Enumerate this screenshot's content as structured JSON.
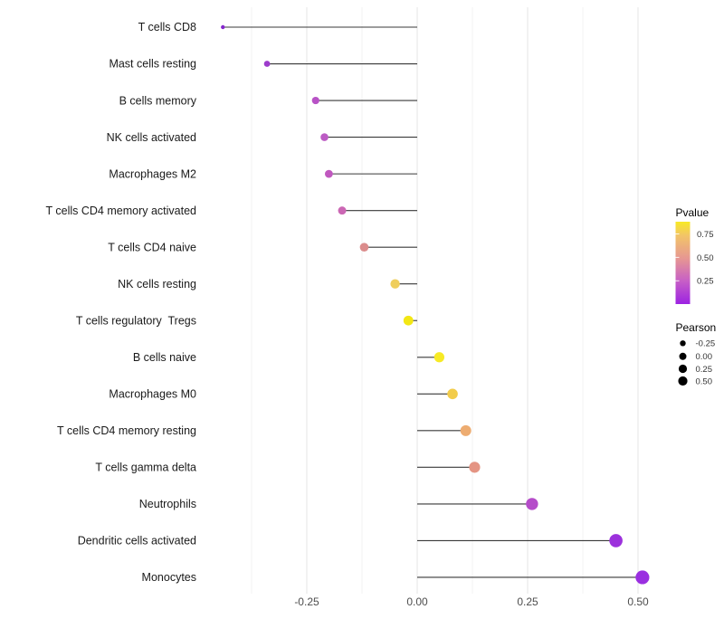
{
  "chart_data": {
    "type": "lollipop",
    "title": "",
    "xlabel": "",
    "ylabel": "",
    "x_ticks": [
      -0.25,
      0.0,
      0.25,
      0.5
    ],
    "x_tick_labels": [
      "-0.25",
      "0.00",
      "0.25",
      "0.50"
    ],
    "xlim": [
      -0.49,
      0.56
    ],
    "minor_gridlines": [
      -0.375,
      -0.125,
      0.125,
      0.375
    ],
    "grid": "vertical-only",
    "rows": [
      {
        "label": "T cells CD8",
        "pearson": -0.44,
        "pvalue": 0.02,
        "color": "#8426CC",
        "r": 2.2
      },
      {
        "label": "Mast cells resting",
        "pearson": -0.34,
        "pvalue": 0.07,
        "color": "#9D3CCC",
        "r": 3.4
      },
      {
        "label": "B cells memory",
        "pearson": -0.23,
        "pvalue": 0.17,
        "color": "#B852C6",
        "r": 4.1
      },
      {
        "label": "NK cells activated",
        "pearson": -0.21,
        "pvalue": 0.2,
        "color": "#BC5CC4",
        "r": 4.3
      },
      {
        "label": "Macrophages M2",
        "pearson": -0.2,
        "pvalue": 0.22,
        "color": "#C058BF",
        "r": 4.4
      },
      {
        "label": "T cells CD4 memory activated",
        "pearson": -0.17,
        "pvalue": 0.28,
        "color": "#CB67B4",
        "r": 4.5
      },
      {
        "label": "T cells CD4 naive",
        "pearson": -0.12,
        "pvalue": 0.46,
        "color": "#DB8C8C",
        "r": 4.8
      },
      {
        "label": "NK cells resting",
        "pearson": -0.05,
        "pvalue": 0.7,
        "color": "#EFCE5C",
        "r": 5.2
      },
      {
        "label": "T cells regulatory  Tregs",
        "pearson": -0.02,
        "pvalue": 0.85,
        "color": "#F3E714",
        "r": 5.4
      },
      {
        "label": "B cells naive",
        "pearson": 0.05,
        "pvalue": 0.86,
        "color": "#F7EA25",
        "r": 5.6
      },
      {
        "label": "Macrophages M0",
        "pearson": 0.08,
        "pvalue": 0.71,
        "color": "#F2CC4B",
        "r": 5.8
      },
      {
        "label": "T cells CD4 memory resting",
        "pearson": 0.11,
        "pvalue": 0.58,
        "color": "#EDAC71",
        "r": 6.0
      },
      {
        "label": "T cells gamma delta",
        "pearson": 0.13,
        "pvalue": 0.49,
        "color": "#E49483",
        "r": 6.1
      },
      {
        "label": "Neutrophils",
        "pearson": 0.26,
        "pvalue": 0.19,
        "color": "#B54CC9",
        "r": 6.7
      },
      {
        "label": "Dendritic cells activated",
        "pearson": 0.45,
        "pvalue": 0.06,
        "color": "#9C31DC",
        "r": 7.3
      },
      {
        "label": "Monocytes",
        "pearson": 0.51,
        "pvalue": 0.05,
        "color": "#9A2FE0",
        "r": 7.6
      }
    ],
    "legend": {
      "color": {
        "title": "Pvalue",
        "tick_labels": [
          "0.75",
          "0.50",
          "0.25"
        ],
        "gradient_top_to_bottom": [
          "#F8E925",
          "#F2C468",
          "#E69693",
          "#C75FC6",
          "#9C22E2"
        ]
      },
      "size": {
        "title": "Pearson",
        "entries": [
          {
            "label": "-0.25",
            "r": 3.2
          },
          {
            "label": "0.00",
            "r": 4.0
          },
          {
            "label": "0.25",
            "r": 4.6
          },
          {
            "label": "0.50",
            "r": 5.1
          }
        ]
      }
    },
    "style_colors": {
      "stem": "#383838",
      "major_grid": "#E4E4E4",
      "minor_grid": "#F3F3F3",
      "axis_text": "#4D4D4D",
      "label_text": "#1A1A1A",
      "legend_title_text": "#000000",
      "legend_tick_text": "#333333",
      "background": "#FFFFFF"
    }
  }
}
